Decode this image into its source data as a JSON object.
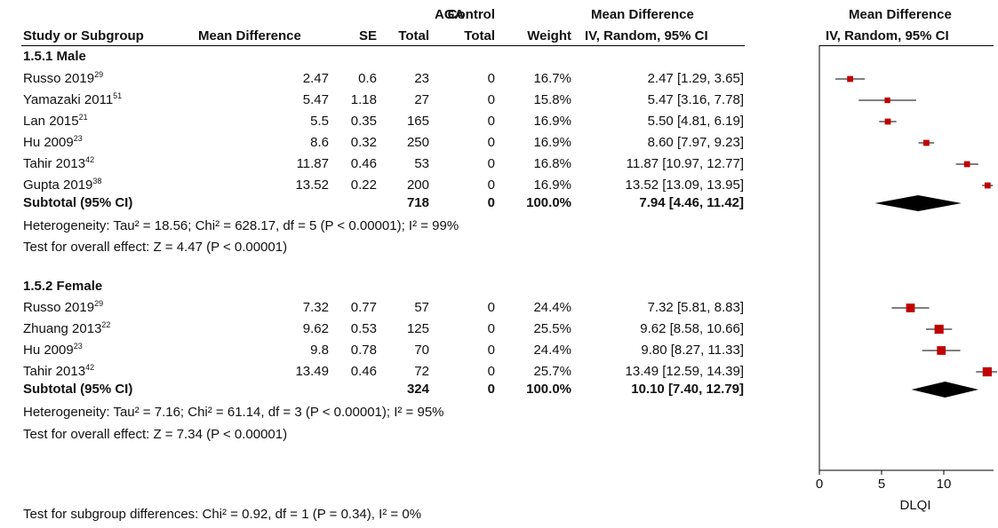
{
  "headers": {
    "study": "Study or Subgroup",
    "md": "Mean Difference",
    "se": "SE",
    "aga_top": "AGA",
    "aga_bottom": "Total",
    "control_top": "Control",
    "control_bottom": "Total",
    "weight": "Weight",
    "ci_top": "Mean Difference",
    "ci_bottom": "IV, Random, 95% CI",
    "plot_top": "Mean Difference",
    "plot_bottom": "IV, Random, 95% CI"
  },
  "footer": {
    "subgroup_test": "Test for subgroup differences: Chi² = 0.92, df = 1 (P = 0.34), I² = 0%"
  },
  "chart_data": {
    "type": "forest",
    "xlabel": "DLQI",
    "xlim": [
      0,
      14
    ],
    "xticks": [
      "0",
      "5",
      "10"
    ],
    "groups": [
      {
        "label": "1.5.1 Male",
        "rows": [
          {
            "study": "Russo 2019",
            "ref": "29",
            "md": "2.47",
            "se": "0.6",
            "aga": "23",
            "control": "0",
            "weight": "16.7%",
            "ci": "2.47 [1.29, 3.65]",
            "est": 2.47,
            "lo": 1.29,
            "hi": 3.65
          },
          {
            "study": "Yamazaki 2011",
            "ref": "51",
            "md": "5.47",
            "se": "1.18",
            "aga": "27",
            "control": "0",
            "weight": "15.8%",
            "ci": "5.47 [3.16, 7.78]",
            "est": 5.47,
            "lo": 3.16,
            "hi": 7.78
          },
          {
            "study": "Lan 2015",
            "ref": "21",
            "md": "5.5",
            "se": "0.35",
            "aga": "165",
            "control": "0",
            "weight": "16.9%",
            "ci": "5.50 [4.81, 6.19]",
            "est": 5.5,
            "lo": 4.81,
            "hi": 6.19
          },
          {
            "study": "Hu 2009",
            "ref": "23",
            "md": "8.6",
            "se": "0.32",
            "aga": "250",
            "control": "0",
            "weight": "16.9%",
            "ci": "8.60 [7.97, 9.23]",
            "est": 8.6,
            "lo": 7.97,
            "hi": 9.23
          },
          {
            "study": "Tahir 2013",
            "ref": "42",
            "md": "11.87",
            "se": "0.46",
            "aga": "53",
            "control": "0",
            "weight": "16.8%",
            "ci": "11.87 [10.97, 12.77]",
            "est": 11.87,
            "lo": 10.97,
            "hi": 12.77
          },
          {
            "study": "Gupta 2019",
            "ref": "38",
            "md": "13.52",
            "se": "0.22",
            "aga": "200",
            "control": "0",
            "weight": "16.9%",
            "ci": "13.52 [13.09, 13.95]",
            "est": 13.52,
            "lo": 13.09,
            "hi": 13.95
          }
        ],
        "subtotal": {
          "label": "Subtotal (95% CI)",
          "aga": "718",
          "control": "0",
          "weight": "100.0%",
          "ci": "7.94 [4.46, 11.42]",
          "est": 7.94,
          "lo": 4.46,
          "hi": 11.42
        },
        "heterogeneity": "Heterogeneity: Tau² = 18.56; Chi² = 628.17, df = 5 (P < 0.00001); I² = 99%",
        "overall": "Test for overall effect: Z = 4.47 (P < 0.00001)"
      },
      {
        "label": "1.5.2 Female",
        "rows": [
          {
            "study": "Russo 2019",
            "ref": "29",
            "md": "7.32",
            "se": "0.77",
            "aga": "57",
            "control": "0",
            "weight": "24.4%",
            "ci": "7.32 [5.81, 8.83]",
            "est": 7.32,
            "lo": 5.81,
            "hi": 8.83
          },
          {
            "study": "Zhuang 2013",
            "ref": "22",
            "md": "9.62",
            "se": "0.53",
            "aga": "125",
            "control": "0",
            "weight": "25.5%",
            "ci": "9.62 [8.58, 10.66]",
            "est": 9.62,
            "lo": 8.58,
            "hi": 10.66
          },
          {
            "study": "Hu 2009",
            "ref": "23",
            "md": "9.8",
            "se": "0.78",
            "aga": "70",
            "control": "0",
            "weight": "24.4%",
            "ci": "9.80 [8.27, 11.33]",
            "est": 9.8,
            "lo": 8.27,
            "hi": 11.33
          },
          {
            "study": "Tahir 2013",
            "ref": "42",
            "md": "13.49",
            "se": "0.46",
            "aga": "72",
            "control": "0",
            "weight": "25.7%",
            "ci": "13.49 [12.59, 14.39]",
            "est": 13.49,
            "lo": 12.59,
            "hi": 14.39
          }
        ],
        "subtotal": {
          "label": "Subtotal (95% CI)",
          "aga": "324",
          "control": "0",
          "weight": "100.0%",
          "ci": "10.10 [7.40, 12.79]",
          "est": 10.1,
          "lo": 7.4,
          "hi": 12.79
        },
        "heterogeneity": "Heterogeneity: Tau² = 7.16; Chi² = 61.14, df = 3 (P < 0.00001); I² = 95%",
        "overall": "Test for overall effect: Z = 7.34 (P < 0.00001)"
      }
    ],
    "colors": {
      "marker": "#c00000",
      "diamond": "#000000"
    }
  }
}
